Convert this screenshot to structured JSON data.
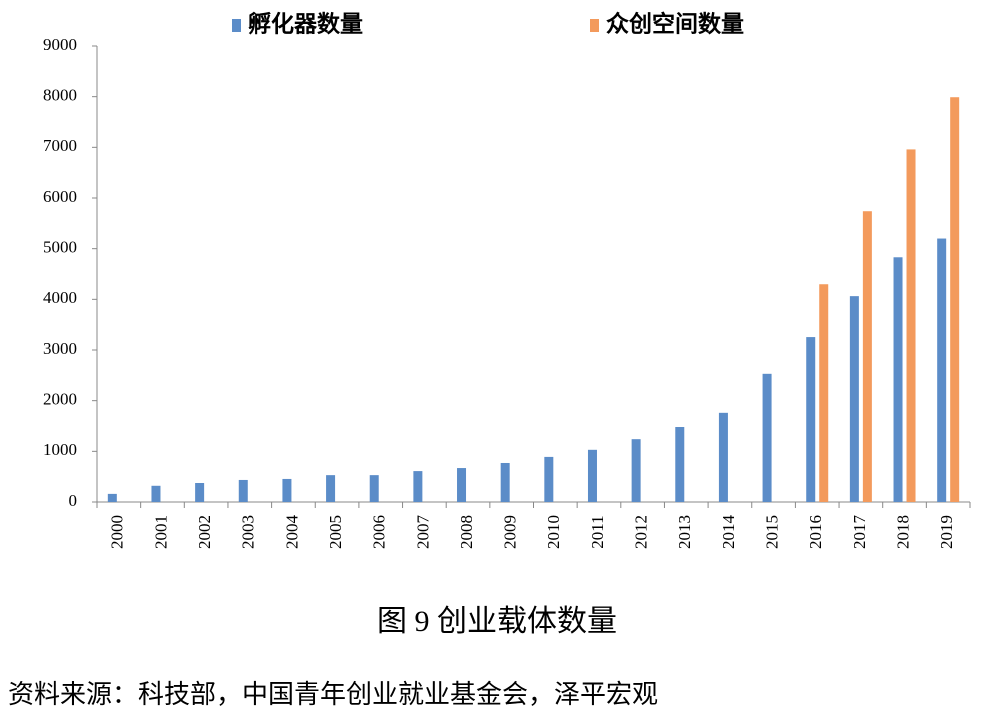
{
  "chart_data": {
    "type": "bar",
    "categories": [
      "2000",
      "2001",
      "2002",
      "2003",
      "2004",
      "2005",
      "2006",
      "2007",
      "2008",
      "2009",
      "2010",
      "2011",
      "2012",
      "2013",
      "2014",
      "2015",
      "2016",
      "2017",
      "2018",
      "2019"
    ],
    "series": [
      {
        "name": "孵化器数量",
        "color": "#5b8cc8",
        "values": [
          160,
          320,
          375,
          435,
          455,
          530,
          530,
          610,
          670,
          770,
          890,
          1030,
          1240,
          1480,
          1760,
          2530,
          3255,
          4063,
          4830,
          5200
        ]
      },
      {
        "name": "众创空间数量",
        "color": "#f39a5c",
        "values": [
          null,
          null,
          null,
          null,
          null,
          null,
          null,
          null,
          null,
          null,
          null,
          null,
          null,
          null,
          null,
          null,
          4298,
          5739,
          6959,
          7989
        ]
      }
    ],
    "ylim": [
      0,
      9000
    ],
    "yticks": [
      0,
      1000,
      2000,
      3000,
      4000,
      5000,
      6000,
      7000,
      8000,
      9000
    ],
    "caption": "图 9 创业载体数量",
    "source": "资料来源：科技部，中国青年创业就业基金会，泽平宏观"
  }
}
